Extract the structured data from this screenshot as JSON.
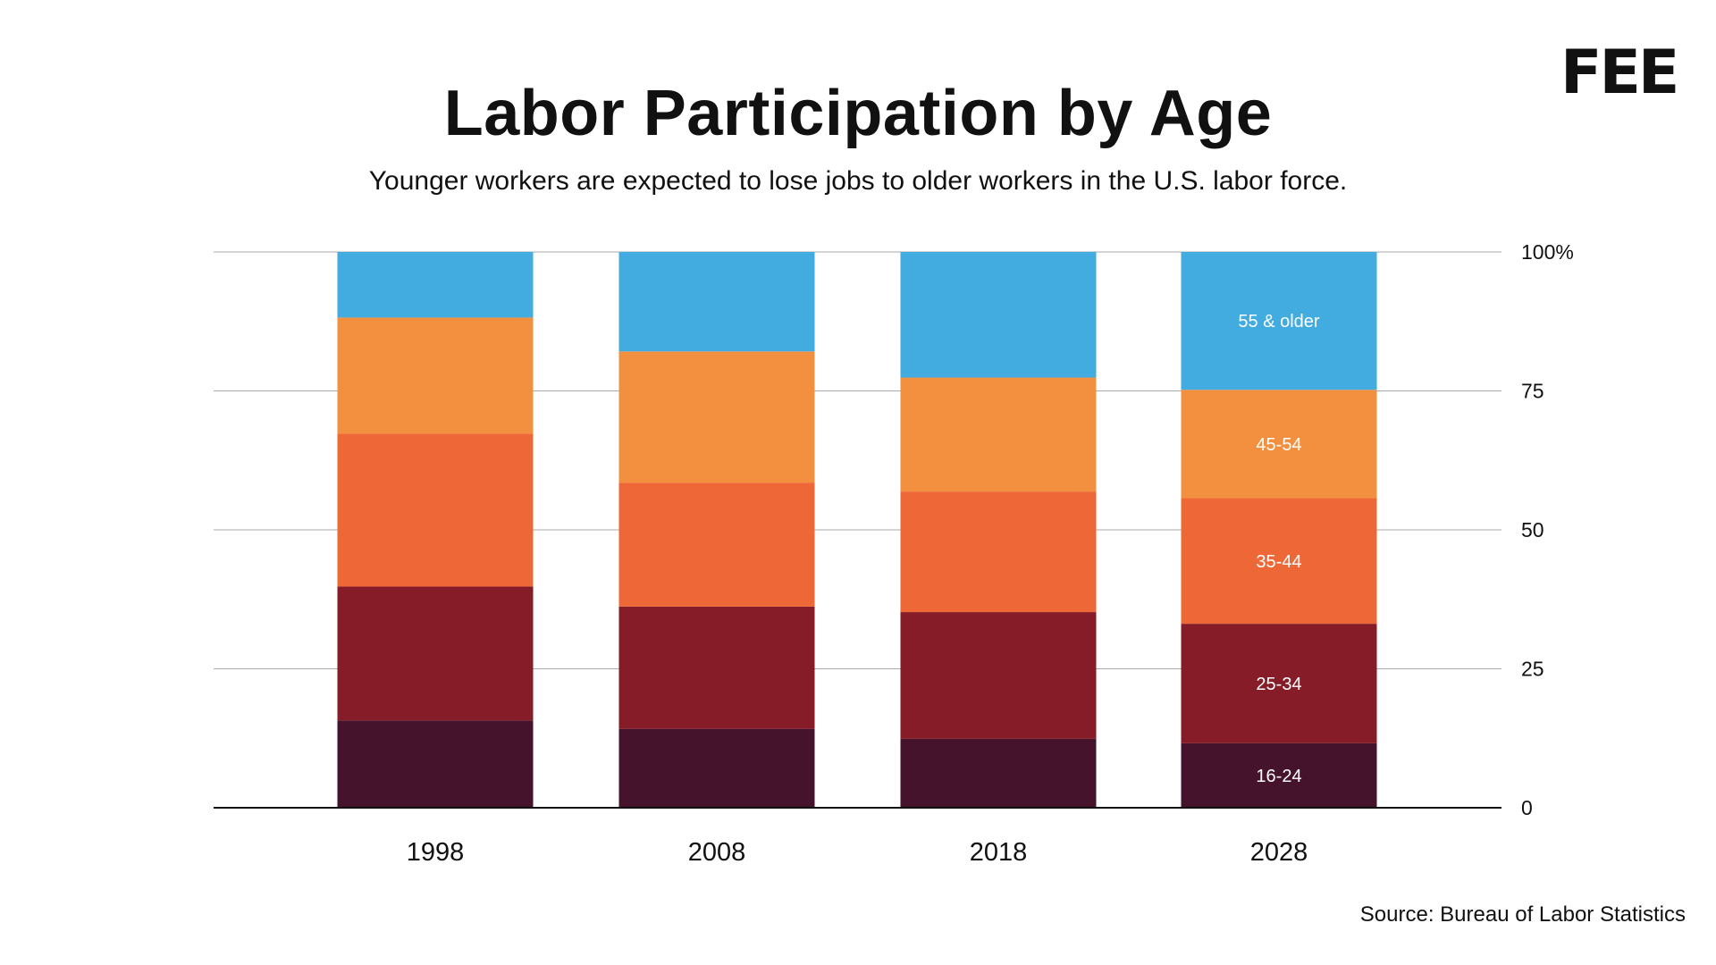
{
  "title": "Labor Participation by Age",
  "subtitle": "Younger workers are expected to lose jobs to older workers in the U.S. labor force.",
  "logo": "FEE",
  "source": "Source: Bureau of Labor Statistics",
  "colors": {
    "16-24": "#46132C",
    "25-34": "#851C27",
    "35-44": "#EE6737",
    "45-54": "#F2903F",
    "55 & older": "#42ABE0"
  },
  "chart_data": {
    "type": "bar",
    "stacked": true,
    "title": "Labor Participation by Age",
    "xlabel": "",
    "ylabel": "",
    "ylim": [
      0,
      100
    ],
    "yticks": [
      "0",
      "25",
      "50",
      "75",
      "100%"
    ],
    "ytick_values": [
      0,
      25,
      50,
      75,
      100
    ],
    "categories": [
      "1998",
      "2008",
      "2018",
      "2028"
    ],
    "series": [
      {
        "name": "16-24",
        "values": [
          15.7,
          14.2,
          12.4,
          11.6
        ]
      },
      {
        "name": "25-34",
        "values": [
          24.1,
          22.0,
          22.8,
          21.5
        ]
      },
      {
        "name": "35-44",
        "values": [
          27.5,
          22.3,
          21.7,
          22.6
        ]
      },
      {
        "name": "45-54",
        "values": [
          20.9,
          23.6,
          20.5,
          19.5
        ]
      },
      {
        "name": "55 & older",
        "values": [
          11.8,
          17.9,
          22.6,
          24.8
        ]
      }
    ],
    "series_labels_on_category": "2028",
    "grid": true
  }
}
